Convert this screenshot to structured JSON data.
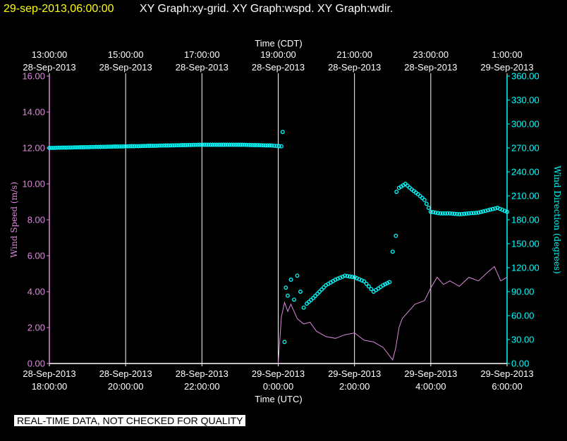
{
  "header": {
    "timestamp": "29-sep-2013,06:00:00",
    "graph_titles": "XY Graph:xy-grid.  XY Graph:wspd.  XY Graph:wdir."
  },
  "top_axis": {
    "title": "Time (CDT)",
    "ticks": [
      {
        "time": "13:00:00",
        "date": "28-Sep-2013"
      },
      {
        "time": "15:00:00",
        "date": "28-Sep-2013"
      },
      {
        "time": "17:00:00",
        "date": "28-Sep-2013"
      },
      {
        "time": "19:00:00",
        "date": "28-Sep-2013"
      },
      {
        "time": "21:00:00",
        "date": "28-Sep-2013"
      },
      {
        "time": "23:00:00",
        "date": "28-Sep-2013"
      },
      {
        "time": "1:00:00",
        "date": "29-Sep-2013"
      }
    ]
  },
  "bottom_axis": {
    "title": "Time (UTC)",
    "ticks": [
      {
        "date": "28-Sep-2013",
        "time": "18:00:00"
      },
      {
        "date": "28-Sep-2013",
        "time": "20:00:00"
      },
      {
        "date": "28-Sep-2013",
        "time": "22:00:00"
      },
      {
        "date": "29-Sep-2013",
        "time": "0:00:00"
      },
      {
        "date": "29-Sep-2013",
        "time": "2:00:00"
      },
      {
        "date": "29-Sep-2013",
        "time": "4:00:00"
      },
      {
        "date": "29-Sep-2013",
        "time": "6:00:00"
      }
    ]
  },
  "left_axis": {
    "title": "Wind Speed (m/s)",
    "ticks": [
      "0.00",
      "2.00",
      "4.00",
      "6.00",
      "8.00",
      "10.00",
      "12.00",
      "14.00",
      "16.00"
    ]
  },
  "right_axis": {
    "title": "Wind Direction (degrees)",
    "ticks": [
      "0.00",
      "30.00",
      "60.00",
      "90.00",
      "120.00",
      "150.00",
      "180.00",
      "210.00",
      "240.00",
      "270.00",
      "300.00",
      "330.00",
      "360.00"
    ]
  },
  "quality_note": "REAL-TIME DATA, NOT CHECKED FOR QUALITY",
  "colors": {
    "background": "#000000",
    "header_timestamp": "#ffff00",
    "axis_left": "#dd88dd",
    "axis_right": "#00ffff",
    "wind_speed_line": "#dd88dd",
    "wind_direction_markers": "#00ffff",
    "grid": "#ffffff"
  },
  "chart_data": [
    {
      "type": "line",
      "title": "",
      "xlabel": "Time (UTC)",
      "ylabel": "Wind Speed (m/s)",
      "xlim": [
        "2013-09-28 18:00",
        "2013-09-29 06:00"
      ],
      "ylim": [
        0,
        16
      ],
      "grid": true,
      "series": [
        {
          "name": "Wind Speed (m/s)",
          "x": [
            "2013-09-29 00:00",
            "2013-09-29 00:05",
            "2013-09-29 00:10",
            "2013-09-29 00:15",
            "2013-09-29 00:20",
            "2013-09-29 00:30",
            "2013-09-29 00:40",
            "2013-09-29 00:50",
            "2013-09-29 01:00",
            "2013-09-29 01:15",
            "2013-09-29 01:30",
            "2013-09-29 01:45",
            "2013-09-29 02:00",
            "2013-09-29 02:15",
            "2013-09-29 02:30",
            "2013-09-29 02:45",
            "2013-09-29 03:00",
            "2013-09-29 03:05",
            "2013-09-29 03:10",
            "2013-09-29 03:15",
            "2013-09-29 03:25",
            "2013-09-29 03:35",
            "2013-09-29 03:50",
            "2013-09-29 04:00",
            "2013-09-29 04:10",
            "2013-09-29 04:20",
            "2013-09-29 04:30",
            "2013-09-29 04:45",
            "2013-09-29 05:00",
            "2013-09-29 05:15",
            "2013-09-29 05:30",
            "2013-09-29 05:40",
            "2013-09-29 05:50",
            "2013-09-29 06:00"
          ],
          "y": [
            0.0,
            2.6,
            3.4,
            2.9,
            3.3,
            2.5,
            2.2,
            2.3,
            1.8,
            1.5,
            1.4,
            1.6,
            1.7,
            1.3,
            1.2,
            0.9,
            0.2,
            0.9,
            2.0,
            2.5,
            2.9,
            3.3,
            3.5,
            4.2,
            4.8,
            4.4,
            4.6,
            4.3,
            4.8,
            4.6,
            5.1,
            5.4,
            4.6,
            4.8
          ]
        }
      ]
    },
    {
      "type": "scatter",
      "title": "",
      "xlabel": "Time (UTC)",
      "ylabel": "Wind Direction (degrees)",
      "xlim": [
        "2013-09-28 18:00",
        "2013-09-29 06:00"
      ],
      "ylim": [
        0,
        360
      ],
      "grid": true,
      "series": [
        {
          "name": "Wind Direction (degrees)",
          "x": [
            "2013-09-28 18:00",
            "2013-09-28 19:00",
            "2013-09-28 20:00",
            "2013-09-28 21:00",
            "2013-09-28 22:00",
            "2013-09-28 23:00",
            "2013-09-28 23:50",
            "2013-09-29 00:05",
            "2013-09-29 00:07",
            "2013-09-29 00:10",
            "2013-09-29 00:12",
            "2013-09-29 00:15",
            "2013-09-29 00:20",
            "2013-09-29 00:25",
            "2013-09-29 00:30",
            "2013-09-29 00:35",
            "2013-09-29 00:40",
            "2013-09-29 00:45",
            "2013-09-29 00:55",
            "2013-09-29 01:05",
            "2013-09-29 01:15",
            "2013-09-29 01:30",
            "2013-09-29 01:45",
            "2013-09-29 02:00",
            "2013-09-29 02:15",
            "2013-09-29 02:30",
            "2013-09-29 02:45",
            "2013-09-29 02:55",
            "2013-09-29 03:00",
            "2013-09-29 03:05",
            "2013-09-29 03:06",
            "2013-09-29 03:10",
            "2013-09-29 03:20",
            "2013-09-29 03:30",
            "2013-09-29 03:40",
            "2013-09-29 03:50",
            "2013-09-29 04:00",
            "2013-09-29 04:15",
            "2013-09-29 04:30",
            "2013-09-29 04:45",
            "2013-09-29 05:00",
            "2013-09-29 05:15",
            "2013-09-29 05:30",
            "2013-09-29 05:45",
            "2013-09-29 06:00"
          ],
          "y": [
            270,
            271,
            272,
            273,
            274,
            274,
            273,
            272,
            290,
            27,
            95,
            85,
            105,
            80,
            110,
            90,
            70,
            75,
            82,
            90,
            98,
            105,
            110,
            108,
            103,
            90,
            98,
            102,
            140,
            160,
            215,
            220,
            225,
            218,
            212,
            205,
            190,
            188,
            188,
            187,
            188,
            189,
            192,
            195,
            190
          ]
        }
      ]
    }
  ]
}
